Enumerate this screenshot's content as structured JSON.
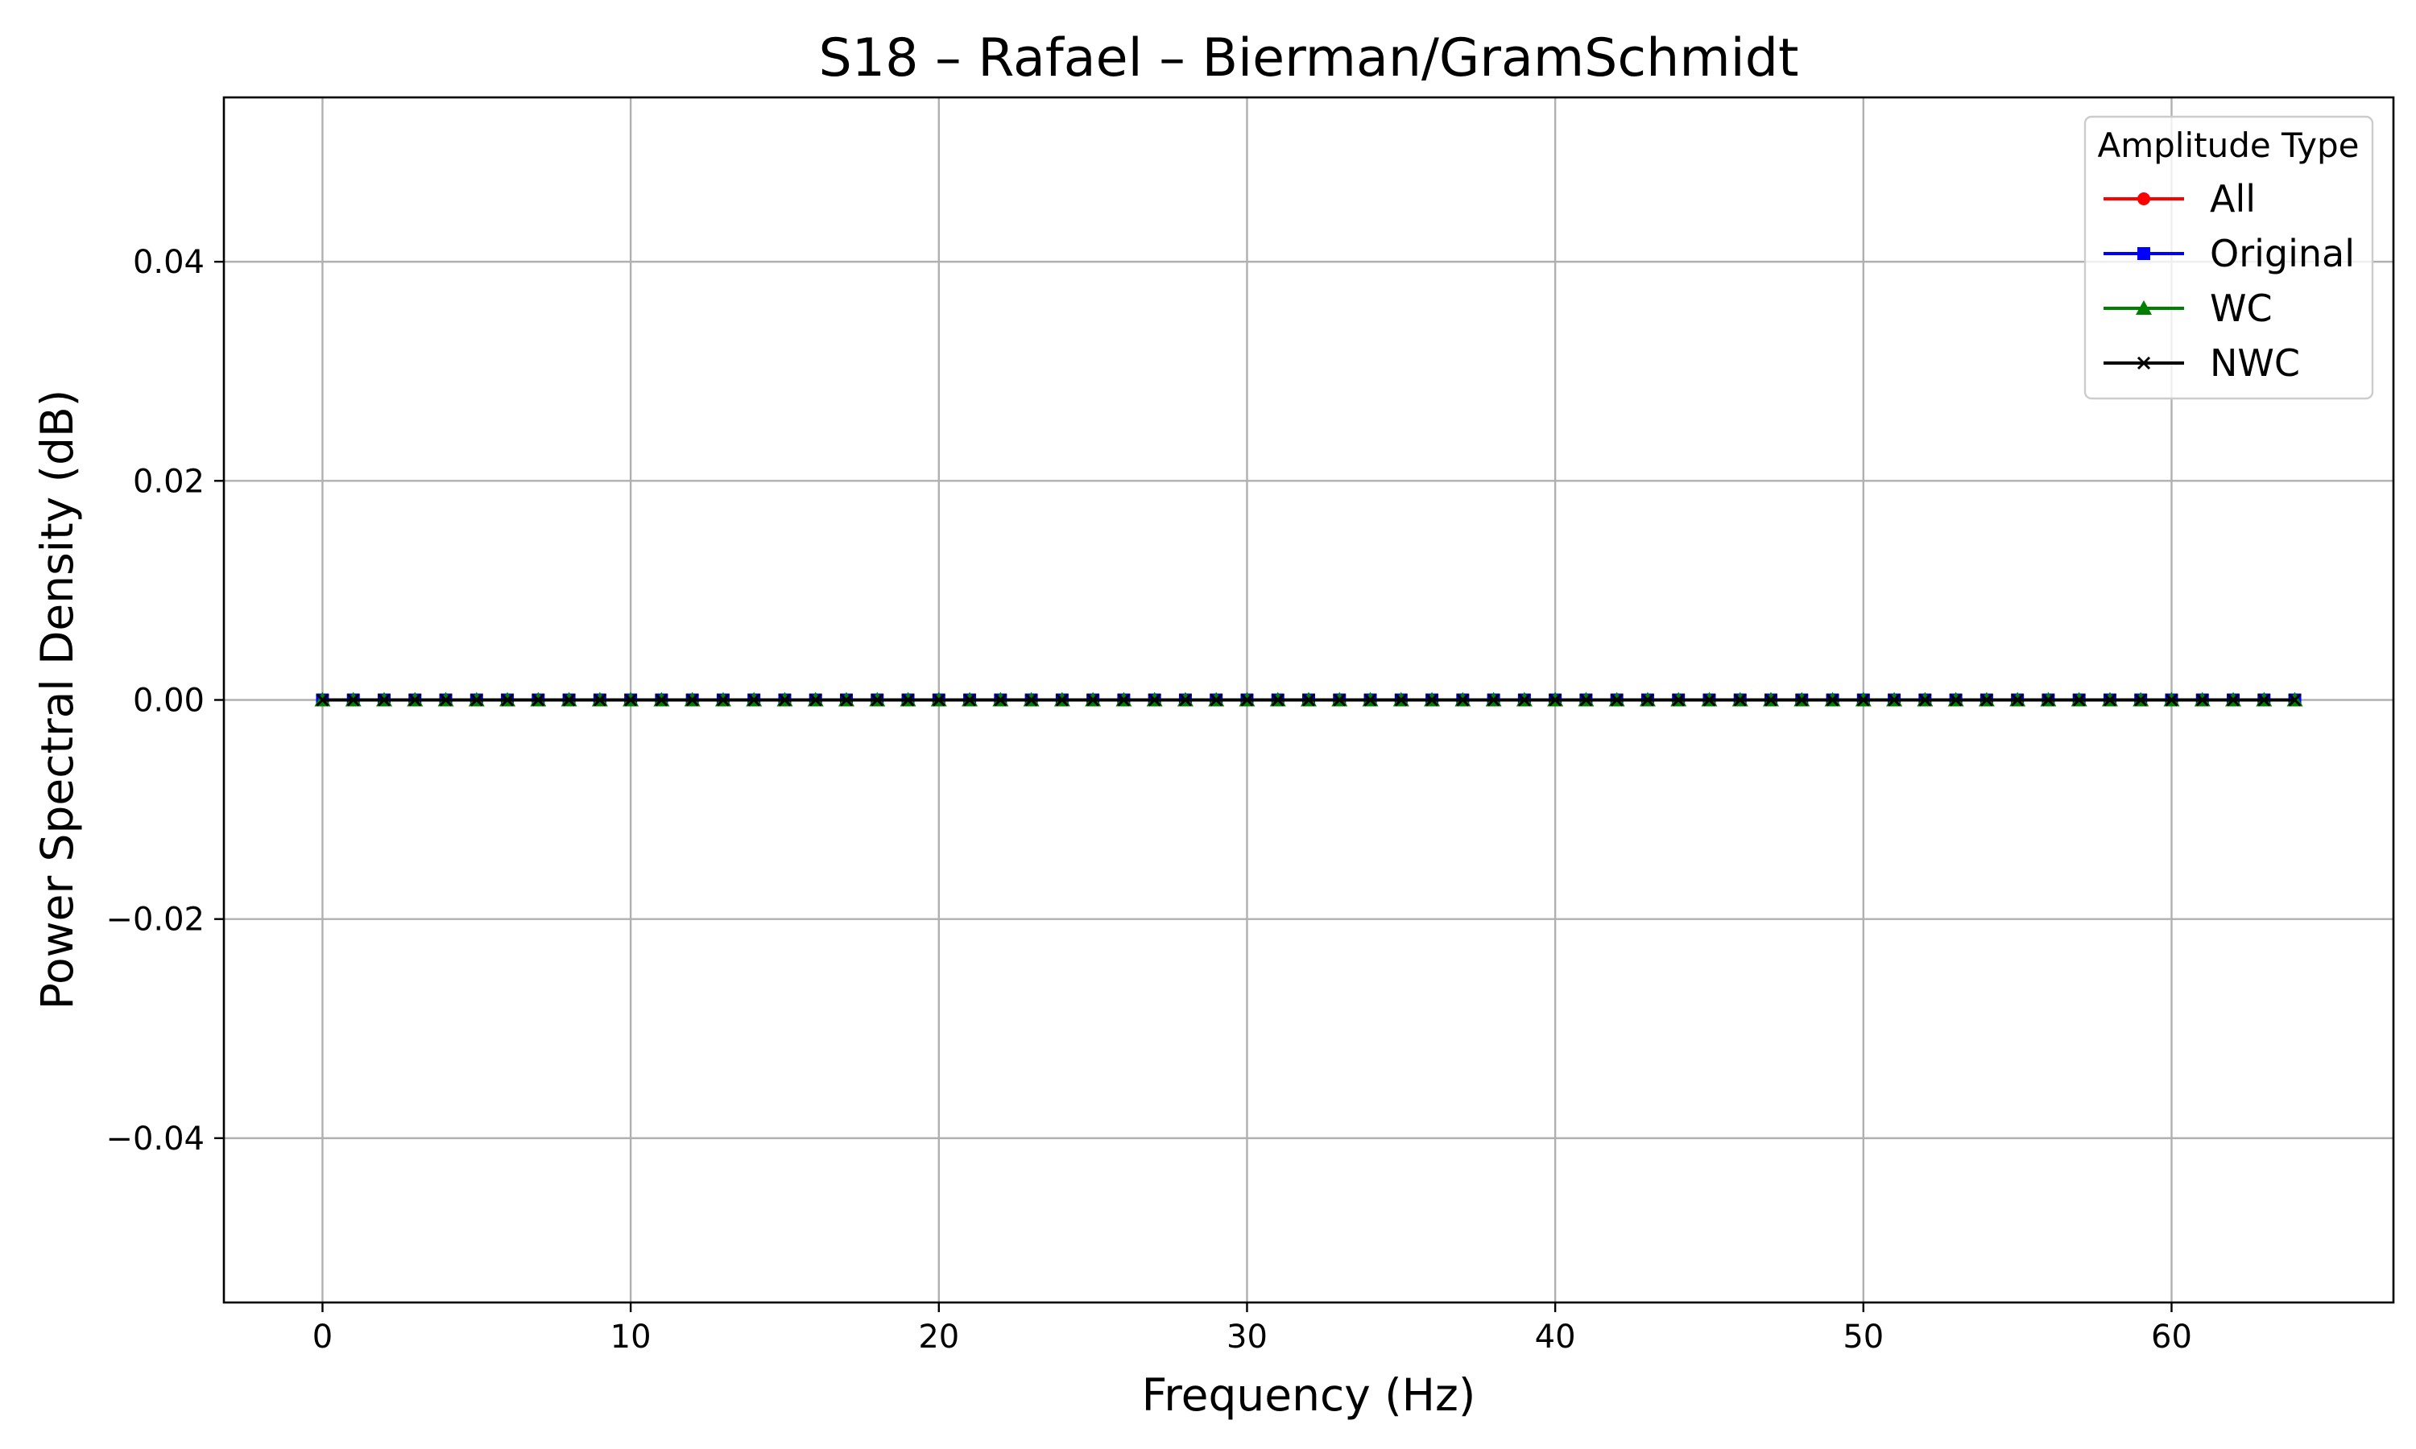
{
  "chart_data": {
    "type": "line",
    "title": "S18 – Rafael – Bierman/GramSchmidt",
    "xlabel": "Frequency (Hz)",
    "ylabel": "Power Spectral Density (dB)",
    "xlim": [
      -3.2,
      67.2
    ],
    "ylim": [
      -0.055,
      0.055
    ],
    "xticks": [
      0,
      10,
      20,
      30,
      40,
      50,
      60
    ],
    "xtick_labels": [
      "0",
      "10",
      "20",
      "30",
      "40",
      "50",
      "60"
    ],
    "yticks": [
      -0.04,
      -0.02,
      0.0,
      0.02,
      0.04
    ],
    "ytick_labels": [
      "−0.04",
      "−0.02",
      "0.00",
      "0.02",
      "0.04"
    ],
    "grid": true,
    "legend": {
      "title": "Amplitude Type",
      "position": "top-right"
    },
    "x": [
      0,
      1,
      2,
      3,
      4,
      5,
      6,
      7,
      8,
      9,
      10,
      11,
      12,
      13,
      14,
      15,
      16,
      17,
      18,
      19,
      20,
      21,
      22,
      23,
      24,
      25,
      26,
      27,
      28,
      29,
      30,
      31,
      32,
      33,
      34,
      35,
      36,
      37,
      38,
      39,
      40,
      41,
      42,
      43,
      44,
      45,
      46,
      47,
      48,
      49,
      50,
      51,
      52,
      53,
      54,
      55,
      56,
      57,
      58,
      59,
      60,
      61,
      62,
      63,
      64
    ],
    "series": [
      {
        "name": "All",
        "color": "#ff0000",
        "marker": "circle",
        "values": [
          0,
          0,
          0,
          0,
          0,
          0,
          0,
          0,
          0,
          0,
          0,
          0,
          0,
          0,
          0,
          0,
          0,
          0,
          0,
          0,
          0,
          0,
          0,
          0,
          0,
          0,
          0,
          0,
          0,
          0,
          0,
          0,
          0,
          0,
          0,
          0,
          0,
          0,
          0,
          0,
          0,
          0,
          0,
          0,
          0,
          0,
          0,
          0,
          0,
          0,
          0,
          0,
          0,
          0,
          0,
          0,
          0,
          0,
          0,
          0,
          0,
          0,
          0,
          0,
          0
        ]
      },
      {
        "name": "Original",
        "color": "#0000ff",
        "marker": "square",
        "values": [
          0,
          0,
          0,
          0,
          0,
          0,
          0,
          0,
          0,
          0,
          0,
          0,
          0,
          0,
          0,
          0,
          0,
          0,
          0,
          0,
          0,
          0,
          0,
          0,
          0,
          0,
          0,
          0,
          0,
          0,
          0,
          0,
          0,
          0,
          0,
          0,
          0,
          0,
          0,
          0,
          0,
          0,
          0,
          0,
          0,
          0,
          0,
          0,
          0,
          0,
          0,
          0,
          0,
          0,
          0,
          0,
          0,
          0,
          0,
          0,
          0,
          0,
          0,
          0,
          0
        ]
      },
      {
        "name": "WC",
        "color": "#008000",
        "marker": "triangle",
        "values": [
          0,
          0,
          0,
          0,
          0,
          0,
          0,
          0,
          0,
          0,
          0,
          0,
          0,
          0,
          0,
          0,
          0,
          0,
          0,
          0,
          0,
          0,
          0,
          0,
          0,
          0,
          0,
          0,
          0,
          0,
          0,
          0,
          0,
          0,
          0,
          0,
          0,
          0,
          0,
          0,
          0,
          0,
          0,
          0,
          0,
          0,
          0,
          0,
          0,
          0,
          0,
          0,
          0,
          0,
          0,
          0,
          0,
          0,
          0,
          0,
          0,
          0,
          0,
          0,
          0
        ]
      },
      {
        "name": "NWC",
        "color": "#000000",
        "marker": "x",
        "values": [
          0,
          0,
          0,
          0,
          0,
          0,
          0,
          0,
          0,
          0,
          0,
          0,
          0,
          0,
          0,
          0,
          0,
          0,
          0,
          0,
          0,
          0,
          0,
          0,
          0,
          0,
          0,
          0,
          0,
          0,
          0,
          0,
          0,
          0,
          0,
          0,
          0,
          0,
          0,
          0,
          0,
          0,
          0,
          0,
          0,
          0,
          0,
          0,
          0,
          0,
          0,
          0,
          0,
          0,
          0,
          0,
          0,
          0,
          0,
          0,
          0,
          0,
          0,
          0,
          0
        ]
      }
    ]
  }
}
